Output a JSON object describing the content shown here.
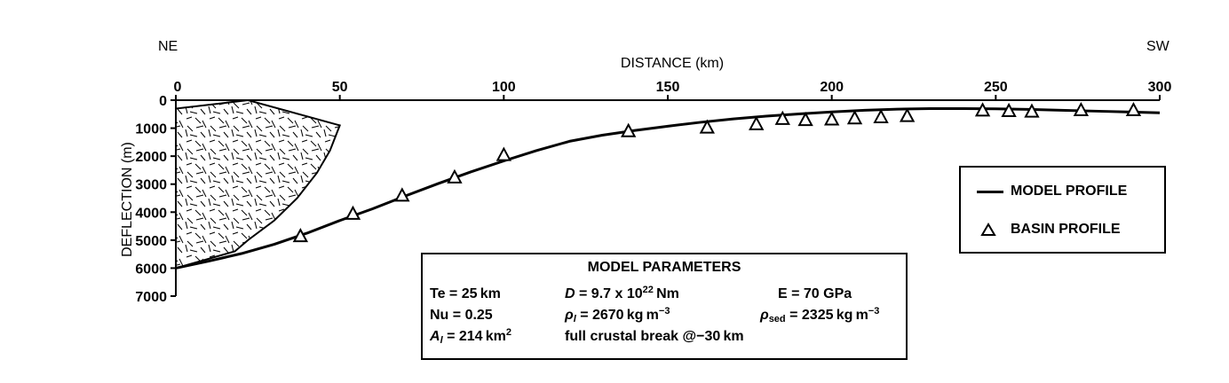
{
  "chart_data": {
    "type": "line",
    "xlabel": "DISTANCE (km)",
    "ylabel": "DEFLECTION (m)",
    "xlim": [
      0,
      300
    ],
    "ylim": [
      0,
      7000
    ],
    "y_inverted": true,
    "x_ticks": [
      0,
      50,
      100,
      150,
      200,
      250,
      300
    ],
    "y_ticks": [
      0,
      1000,
      2000,
      3000,
      4000,
      5000,
      6000,
      7000
    ],
    "direction_labels": {
      "left": "NE",
      "right": "SW"
    },
    "grid": false,
    "legend_placement": "right",
    "legend": [
      {
        "label": "MODEL PROFILE",
        "marker": "line"
      },
      {
        "label": "BASIN PROFILE",
        "marker": "open-triangle"
      }
    ],
    "series": [
      {
        "name": "MODEL PROFILE",
        "style": "line",
        "x": [
          0,
          10,
          20,
          30,
          40,
          50,
          60,
          70,
          80,
          90,
          100,
          110,
          120,
          130,
          140,
          150,
          160,
          170,
          180,
          190,
          200,
          210,
          220,
          230,
          240,
          250,
          260,
          270,
          280,
          290,
          300
        ],
        "y": [
          6000,
          5750,
          5480,
          5150,
          4750,
          4300,
          3880,
          3420,
          2980,
          2560,
          2170,
          1800,
          1470,
          1250,
          1080,
          930,
          790,
          670,
          570,
          490,
          420,
          360,
          320,
          300,
          300,
          310,
          330,
          360,
          390,
          420,
          450
        ]
      },
      {
        "name": "BASIN PROFILE",
        "style": "markers",
        "x": [
          38,
          54,
          69,
          85,
          100,
          138,
          162,
          177,
          185,
          192,
          200,
          207,
          215,
          223,
          246,
          254,
          261,
          276,
          292
        ],
        "y": [
          4850,
          4050,
          3400,
          2750,
          1950,
          1100,
          970,
          850,
          660,
          700,
          680,
          640,
          600,
          560,
          360,
          380,
          400,
          350,
          350
        ]
      }
    ],
    "load": {
      "name": "load-wedge",
      "polygon_data_units": [
        [
          0,
          6000
        ],
        [
          0,
          300
        ],
        [
          22,
          0
        ],
        [
          50,
          900
        ],
        [
          49,
          1200
        ],
        [
          47,
          1800
        ],
        [
          43,
          2600
        ],
        [
          37,
          3500
        ],
        [
          30,
          4300
        ],
        [
          22,
          5000
        ],
        [
          18,
          5400
        ]
      ]
    },
    "parameters": {
      "title": "MODEL PARAMETERS",
      "te": "Te = 25 km",
      "d_label": "D",
      "d_value": " = 9.7 x 10",
      "d_exp": "22",
      "d_unit": " Nm",
      "e": "E = 70 GPa",
      "nu": "Nu = 0.25",
      "rho_l_sym": "ρ",
      "rho_l_sub": "l",
      "rho_l_value": " = 2670 kg m",
      "rho_l_exp": "−3",
      "rho_sed_sym": "ρ",
      "rho_sed_sub": "sed",
      "rho_sed_value": " = 2325 kg m",
      "rho_sed_exp": "−3",
      "a_sym": "A",
      "a_sub": "l",
      "a_value": "  = 214 km",
      "a_exp": "2",
      "break": "full crustal break @−30 km"
    }
  }
}
